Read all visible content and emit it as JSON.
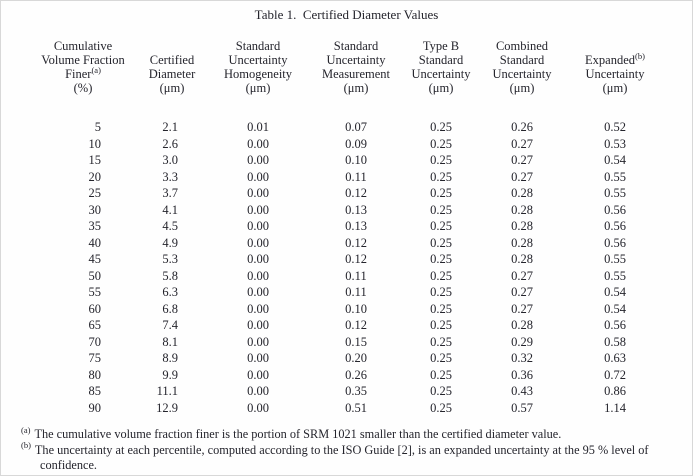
{
  "page": {
    "background": "#fefefe",
    "text_color": "#24242c",
    "border_color": "#d8d8d8"
  },
  "table": {
    "title": "Table 1.  Certified Diameter Values",
    "header": {
      "col1": {
        "l1": "Cumulative",
        "l2": "Volume Fraction",
        "l3": "Finer",
        "l3sup": "(a)",
        "l4": "(%)"
      },
      "col2": {
        "l1": "Certified",
        "l2": "Diameter",
        "l3": "(μm)"
      },
      "col3": {
        "l1": "Standard",
        "l2": "Uncertainty",
        "l3": "Homogeneity",
        "l4": "(μm)"
      },
      "col4": {
        "l1": "Standard",
        "l2": "Uncertainty",
        "l3": "Measurement",
        "l4": "(μm)"
      },
      "col5": {
        "l1": "Type B",
        "l2": "Standard",
        "l3": "Uncertainty",
        "l4": "(μm)"
      },
      "col6": {
        "l1": "Combined",
        "l2": "Standard",
        "l3": "Uncertainty",
        "l4": "(μm)"
      },
      "col7": {
        "l1": "Expanded",
        "l1sup": "(b)",
        "l2": "Uncertainty",
        "l3": "(μm)"
      }
    },
    "rows": [
      [
        "5",
        "2.1",
        "0.01",
        "0.07",
        "0.25",
        "0.26",
        "0.52"
      ],
      [
        "10",
        "2.6",
        "0.00",
        "0.09",
        "0.25",
        "0.27",
        "0.53"
      ],
      [
        "15",
        "3.0",
        "0.00",
        "0.10",
        "0.25",
        "0.27",
        "0.54"
      ],
      [
        "20",
        "3.3",
        "0.00",
        "0.11",
        "0.25",
        "0.27",
        "0.55"
      ],
      [
        "25",
        "3.7",
        "0.00",
        "0.12",
        "0.25",
        "0.28",
        "0.55"
      ],
      [
        "30",
        "4.1",
        "0.00",
        "0.13",
        "0.25",
        "0.28",
        "0.56"
      ],
      [
        "35",
        "4.5",
        "0.00",
        "0.13",
        "0.25",
        "0.28",
        "0.56"
      ],
      [
        "40",
        "4.9",
        "0.00",
        "0.12",
        "0.25",
        "0.28",
        "0.56"
      ],
      [
        "45",
        "5.3",
        "0.00",
        "0.12",
        "0.25",
        "0.28",
        "0.55"
      ],
      [
        "50",
        "5.8",
        "0.00",
        "0.11",
        "0.25",
        "0.27",
        "0.55"
      ],
      [
        "55",
        "6.3",
        "0.00",
        "0.11",
        "0.25",
        "0.27",
        "0.54"
      ],
      [
        "60",
        "6.8",
        "0.00",
        "0.10",
        "0.25",
        "0.27",
        "0.54"
      ],
      [
        "65",
        "7.4",
        "0.00",
        "0.12",
        "0.25",
        "0.28",
        "0.56"
      ],
      [
        "70",
        "8.1",
        "0.00",
        "0.15",
        "0.25",
        "0.29",
        "0.58"
      ],
      [
        "75",
        "8.9",
        "0.00",
        "0.20",
        "0.25",
        "0.32",
        "0.63"
      ],
      [
        "80",
        "9.9",
        "0.00",
        "0.26",
        "0.25",
        "0.36",
        "0.72"
      ],
      [
        "85",
        "11.1",
        "0.00",
        "0.35",
        "0.25",
        "0.43",
        "0.86"
      ],
      [
        "90",
        "12.9",
        "0.00",
        "0.51",
        "0.25",
        "0.57",
        "1.14"
      ]
    ]
  },
  "footnotes": [
    {
      "marker": "(a)",
      "text": "The cumulative volume fraction finer is the portion of SRM 1021 smaller than the certified diameter value."
    },
    {
      "marker": "(b)",
      "text": "The uncertainty at each percentile, computed according to the ISO Guide [2], is an expanded uncertainty at the 95 % level of confidence."
    }
  ]
}
